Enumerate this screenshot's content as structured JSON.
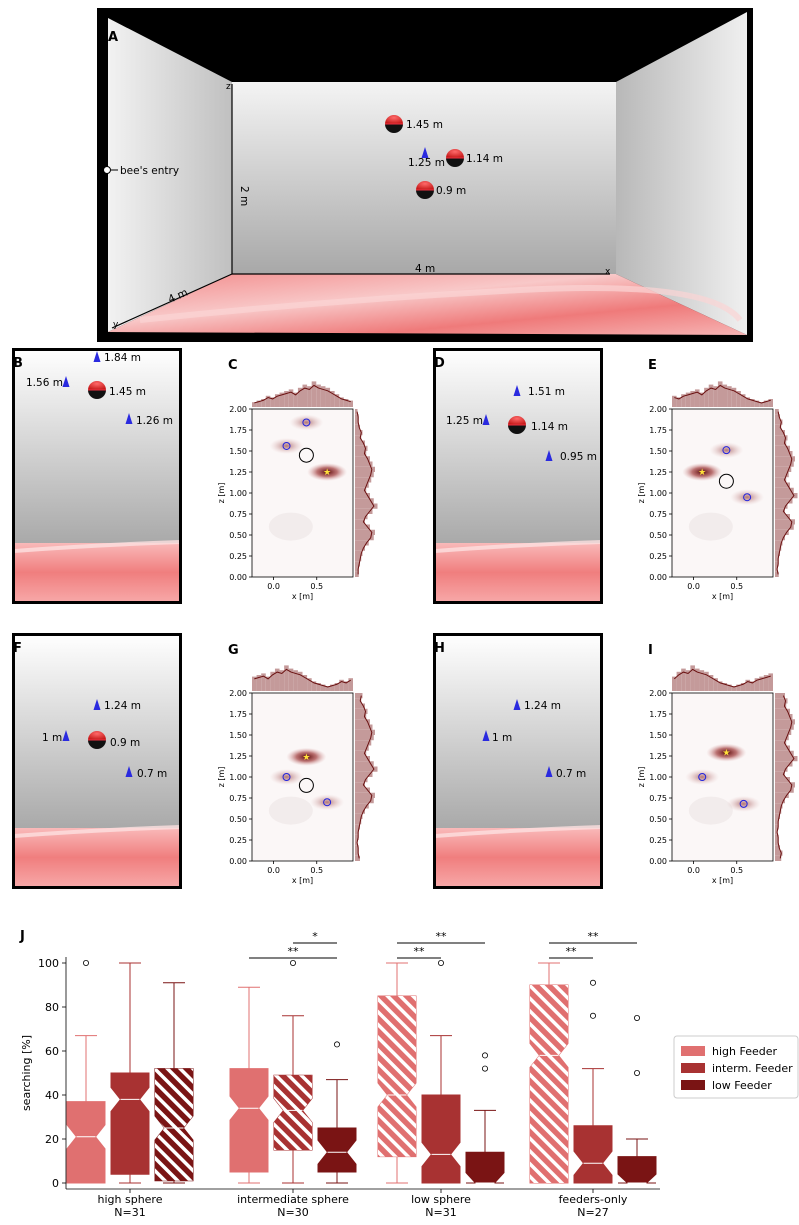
{
  "panels": {
    "A": {
      "letter": "A",
      "entry_label": "bee's entry",
      "height_label": "2 m",
      "width_label": "4 m",
      "depth_label": "4 m",
      "axis_z": "z",
      "axis_x": "x",
      "axis_y": "y",
      "sphere_labels": [
        "1.45 m",
        "1.14 m",
        "0.9 m"
      ],
      "feeder_label": "1.25 m"
    },
    "B": {
      "letter": "B",
      "labels": [
        "1.84 m",
        "1.56 m",
        "1.45 m",
        "1.26 m"
      ]
    },
    "D": {
      "letter": "D",
      "labels": [
        "1.51 m",
        "1.25 m",
        "1.14 m",
        "0.95 m"
      ]
    },
    "F": {
      "letter": "F",
      "labels": [
        "1.24 m",
        "1 m",
        "0.9 m",
        "0.7 m"
      ]
    },
    "H": {
      "letter": "H",
      "labels": [
        "1.24 m",
        "1 m",
        "0.7 m"
      ]
    },
    "heatmaps": [
      {
        "letter": "C",
        "star": [
          0.62,
          1.25
        ],
        "circles": [
          [
            0.38,
            1.84
          ],
          [
            0.15,
            1.56
          ]
        ],
        "sphere": [
          0.38,
          1.45
        ],
        "peak": [
          0.62,
          1.25
        ]
      },
      {
        "letter": "E",
        "star": [
          0.1,
          1.25
        ],
        "circles": [
          [
            0.38,
            1.51
          ],
          [
            0.62,
            0.95
          ]
        ],
        "sphere": [
          0.38,
          1.14
        ],
        "peak": [
          0.1,
          1.25
        ]
      },
      {
        "letter": "G",
        "star": [
          0.38,
          1.24
        ],
        "circles": [
          [
            0.15,
            1.0
          ],
          [
            0.62,
            0.7
          ]
        ],
        "sphere": [
          0.38,
          0.9
        ],
        "peak": [
          0.38,
          1.24
        ]
      },
      {
        "letter": "I",
        "star": [
          0.38,
          1.29
        ],
        "circles": [
          [
            0.1,
            1.0
          ],
          [
            0.58,
            0.68
          ]
        ],
        "sphere": null,
        "peak": [
          0.38,
          1.29
        ]
      }
    ],
    "heatmap_axes": {
      "xlabel": "x [m]",
      "ylabel": "z [m]",
      "xticks": [
        "0.0",
        "0.5"
      ],
      "yticks": [
        "0.00",
        "0.25",
        "0.50",
        "0.75",
        "1.00",
        "1.25",
        "1.50",
        "1.75",
        "2.00"
      ]
    }
  },
  "chart_data": {
    "type": "box",
    "letter": "J",
    "ylabel": "searching [%]",
    "ylim": [
      0,
      100
    ],
    "yticks": [
      0,
      20,
      40,
      60,
      80,
      100
    ],
    "groups": [
      {
        "label": "high sphere",
        "n": "N=31"
      },
      {
        "label": "intermediate sphere",
        "n": "N=30"
      },
      {
        "label": "low sphere",
        "n": "N=31"
      },
      {
        "label": "feeders-only",
        "n": "N=27"
      }
    ],
    "series_names": [
      "high Feeder",
      "interm. Feeder",
      "low Feeder"
    ],
    "colors": [
      "#e07070",
      "#a83232",
      "#7a1414"
    ],
    "boxes": [
      [
        {
          "q1": 0,
          "med": 21,
          "q3": 37,
          "wlo": 0,
          "whi": 67,
          "fliers": [
            100
          ],
          "hatched": false
        },
        {
          "q1": 4,
          "med": 38,
          "q3": 50,
          "wlo": 0,
          "whi": 100,
          "fliers": [],
          "hatched": false
        },
        {
          "q1": 1,
          "med": 25,
          "q3": 52,
          "wlo": 0,
          "whi": 91,
          "fliers": [],
          "hatched": true
        }
      ],
      [
        {
          "q1": 5,
          "med": 34,
          "q3": 52,
          "wlo": 0,
          "whi": 89,
          "fliers": [],
          "hatched": false
        },
        {
          "q1": 15,
          "med": 33,
          "q3": 49,
          "wlo": 0,
          "whi": 76,
          "fliers": [
            100
          ],
          "hatched": true
        },
        {
          "q1": 5,
          "med": 14,
          "q3": 25,
          "wlo": 0,
          "whi": 47,
          "fliers": [
            63
          ],
          "hatched": false
        }
      ],
      [
        {
          "q1": 12,
          "med": 40,
          "q3": 85,
          "wlo": 0,
          "whi": 100,
          "fliers": [],
          "hatched": true
        },
        {
          "q1": 0,
          "med": 13,
          "q3": 40,
          "wlo": 0,
          "whi": 67,
          "fliers": [
            100
          ],
          "hatched": false
        },
        {
          "q1": 0,
          "med": 0,
          "q3": 14,
          "wlo": 0,
          "whi": 33,
          "fliers": [
            58,
            52
          ],
          "hatched": false
        }
      ],
      [
        {
          "q1": 0,
          "med": 58,
          "q3": 90,
          "wlo": 0,
          "whi": 100,
          "fliers": [],
          "hatched": true
        },
        {
          "q1": 0,
          "med": 9,
          "q3": 26,
          "wlo": 0,
          "whi": 52,
          "fliers": [
            76,
            91
          ],
          "hatched": false
        },
        {
          "q1": 0,
          "med": 0,
          "q3": 12,
          "wlo": 0,
          "whi": 20,
          "fliers": [
            50,
            75
          ],
          "hatched": false
        }
      ]
    ],
    "significance": [
      {
        "group": 1,
        "from": 0,
        "to": 2,
        "label": "**"
      },
      {
        "group": 1,
        "from": 1,
        "to": 2,
        "label": "*"
      },
      {
        "group": 2,
        "from": 0,
        "to": 1,
        "label": "**"
      },
      {
        "group": 2,
        "from": 0,
        "to": 2,
        "label": "**"
      },
      {
        "group": 3,
        "from": 0,
        "to": 1,
        "label": "**"
      },
      {
        "group": 3,
        "from": 0,
        "to": 2,
        "label": "**"
      }
    ],
    "legend_position": "right"
  }
}
